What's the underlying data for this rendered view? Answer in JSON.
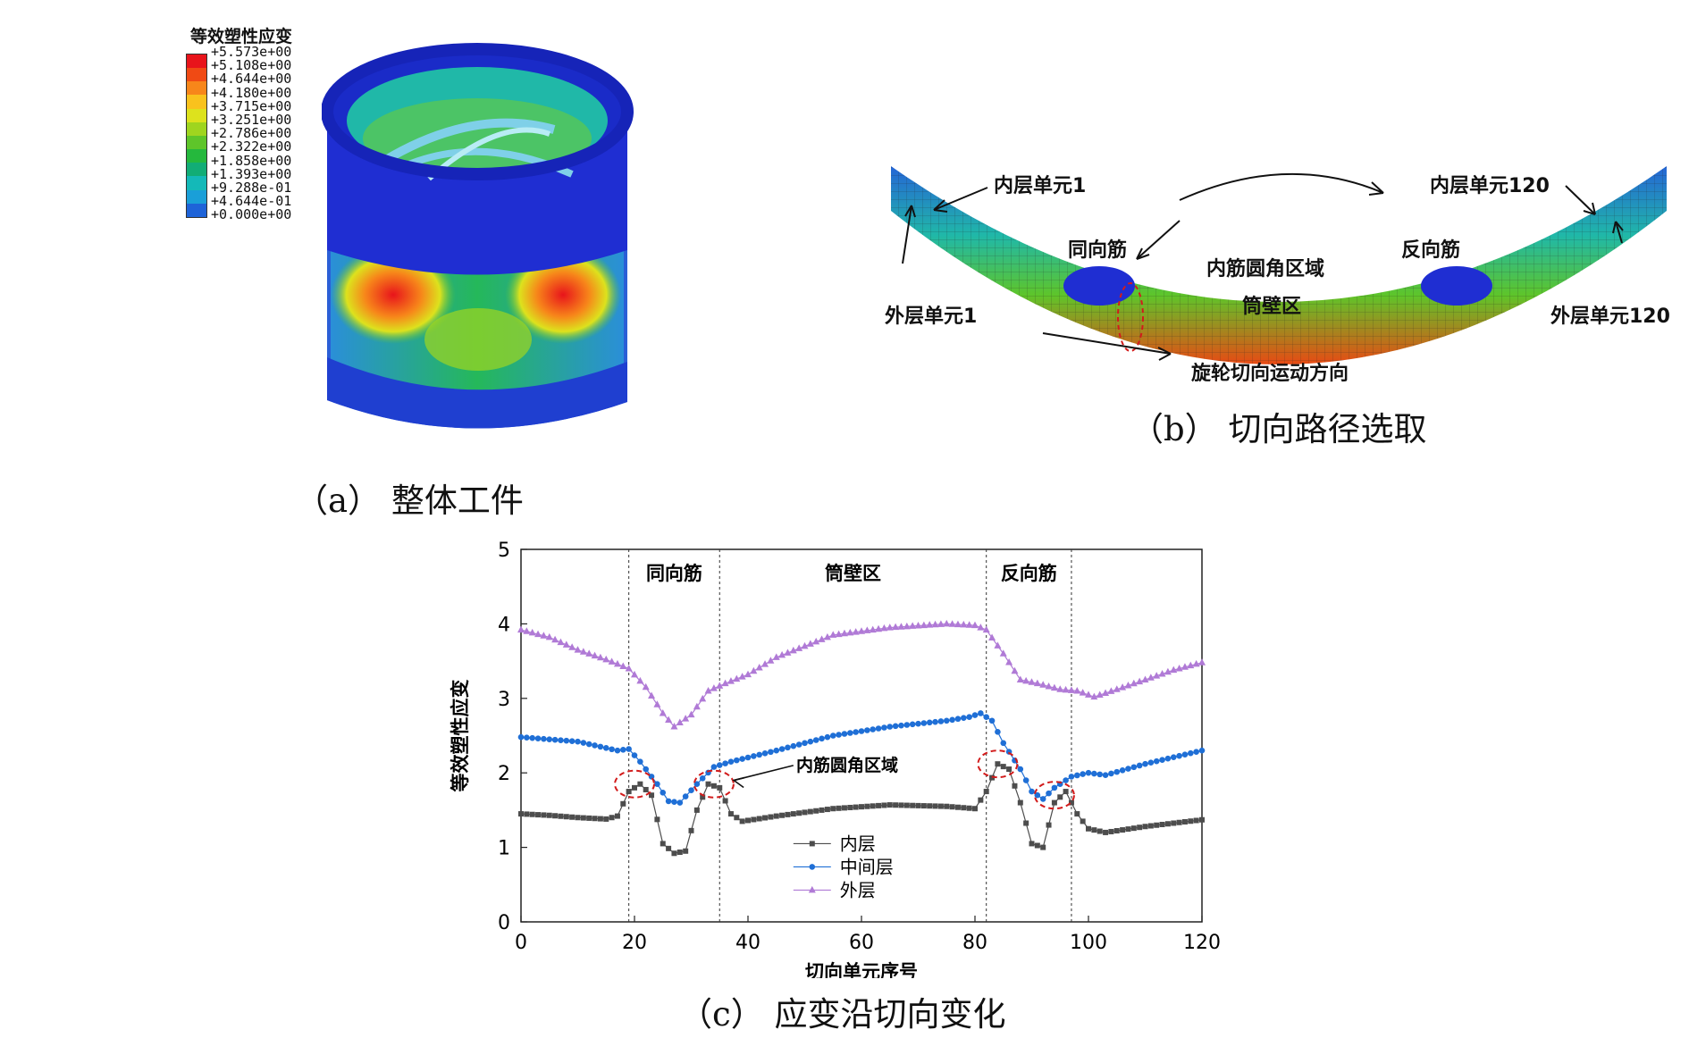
{
  "panel_a": {
    "legend_title": "等效塑性应变",
    "legend_values": [
      "+5.573e+00",
      "+5.108e+00",
      "+4.644e+00",
      "+4.180e+00",
      "+3.715e+00",
      "+3.251e+00",
      "+2.786e+00",
      "+2.322e+00",
      "+1.858e+00",
      "+1.393e+00",
      "+9.288e-01",
      "+4.644e-01",
      "+0.000e+00"
    ],
    "legend_colors": [
      "#e8141b",
      "#f04a14",
      "#f7861a",
      "#f9c21d",
      "#dde21d",
      "#9fd51f",
      "#5ec52a",
      "#25b83d",
      "#12ad76",
      "#14b9b8",
      "#1a9fd8",
      "#1e63d8",
      "#1f2ed2"
    ],
    "caption": "（a）  整体工件"
  },
  "panel_b": {
    "labels": {
      "inner_1": "内层单元1",
      "inner_120": "内层单元120",
      "outer_1": "外层单元1",
      "outer_120": "外层单元120",
      "same_rib": "同向筋",
      "reverse_rib": "反向筋",
      "fillet": "内筋圆角区域",
      "wall": "筒壁区",
      "direction": "旋轮切向运动方向"
    },
    "caption": "（b）  切向路径选取"
  },
  "panel_c": {
    "caption": "（c）  应变沿切向变化",
    "region_labels": [
      "同向筋",
      "筒壁区",
      "反向筋"
    ],
    "annotation": "内筋圆角区域"
  },
  "chart_data": {
    "type": "scatter",
    "xlabel": "切向单元序号",
    "ylabel": "等效塑性应变",
    "xlim": [
      0,
      120
    ],
    "ylim": [
      0,
      5
    ],
    "xticks": [
      0,
      20,
      40,
      60,
      80,
      100,
      120
    ],
    "yticks": [
      0,
      1,
      2,
      3,
      4,
      5
    ],
    "region_boundaries": [
      19,
      35,
      82,
      97
    ],
    "legend_position": "center-bottom",
    "series": [
      {
        "name": "内层",
        "color": "#4d4d4d",
        "marker": "square",
        "keypoints": [
          [
            0,
            1.45
          ],
          [
            5,
            1.43
          ],
          [
            10,
            1.4
          ],
          [
            15,
            1.38
          ],
          [
            17,
            1.42
          ],
          [
            19,
            1.75
          ],
          [
            21,
            1.85
          ],
          [
            23,
            1.7
          ],
          [
            25,
            1.05
          ],
          [
            27,
            0.92
          ],
          [
            29,
            0.95
          ],
          [
            31,
            1.5
          ],
          [
            33,
            1.85
          ],
          [
            35,
            1.8
          ],
          [
            37,
            1.45
          ],
          [
            39,
            1.35
          ],
          [
            45,
            1.42
          ],
          [
            55,
            1.52
          ],
          [
            65,
            1.57
          ],
          [
            75,
            1.55
          ],
          [
            80,
            1.52
          ],
          [
            82,
            1.75
          ],
          [
            84,
            2.12
          ],
          [
            86,
            2.05
          ],
          [
            88,
            1.6
          ],
          [
            90,
            1.05
          ],
          [
            92,
            1.0
          ],
          [
            94,
            1.6
          ],
          [
            96,
            1.75
          ],
          [
            98,
            1.45
          ],
          [
            100,
            1.25
          ],
          [
            103,
            1.2
          ],
          [
            110,
            1.28
          ],
          [
            120,
            1.37
          ]
        ]
      },
      {
        "name": "中间层",
        "color": "#1f6fd6",
        "marker": "circle",
        "keypoints": [
          [
            0,
            2.48
          ],
          [
            10,
            2.42
          ],
          [
            17,
            2.3
          ],
          [
            19,
            2.32
          ],
          [
            21,
            2.15
          ],
          [
            24,
            1.85
          ],
          [
            26,
            1.62
          ],
          [
            28,
            1.6
          ],
          [
            31,
            1.85
          ],
          [
            34,
            2.08
          ],
          [
            37,
            2.15
          ],
          [
            45,
            2.3
          ],
          [
            55,
            2.5
          ],
          [
            65,
            2.62
          ],
          [
            75,
            2.7
          ],
          [
            79,
            2.75
          ],
          [
            81,
            2.8
          ],
          [
            83,
            2.7
          ],
          [
            85,
            2.4
          ],
          [
            88,
            2.05
          ],
          [
            90,
            1.75
          ],
          [
            92,
            1.65
          ],
          [
            94,
            1.8
          ],
          [
            97,
            1.95
          ],
          [
            100,
            2.0
          ],
          [
            103,
            1.97
          ],
          [
            110,
            2.12
          ],
          [
            120,
            2.3
          ]
        ]
      },
      {
        "name": "外层",
        "color": "#b07ad6",
        "marker": "triangle",
        "keypoints": [
          [
            0,
            3.92
          ],
          [
            5,
            3.82
          ],
          [
            10,
            3.65
          ],
          [
            15,
            3.52
          ],
          [
            19,
            3.4
          ],
          [
            22,
            3.15
          ],
          [
            25,
            2.8
          ],
          [
            27,
            2.62
          ],
          [
            30,
            2.78
          ],
          [
            33,
            3.1
          ],
          [
            36,
            3.2
          ],
          [
            40,
            3.32
          ],
          [
            45,
            3.55
          ],
          [
            55,
            3.85
          ],
          [
            65,
            3.95
          ],
          [
            75,
            4.0
          ],
          [
            80,
            3.98
          ],
          [
            82,
            3.92
          ],
          [
            85,
            3.6
          ],
          [
            88,
            3.25
          ],
          [
            91,
            3.2
          ],
          [
            95,
            3.12
          ],
          [
            98,
            3.1
          ],
          [
            101,
            3.02
          ],
          [
            105,
            3.12
          ],
          [
            110,
            3.25
          ],
          [
            115,
            3.38
          ],
          [
            120,
            3.48
          ]
        ]
      }
    ]
  }
}
